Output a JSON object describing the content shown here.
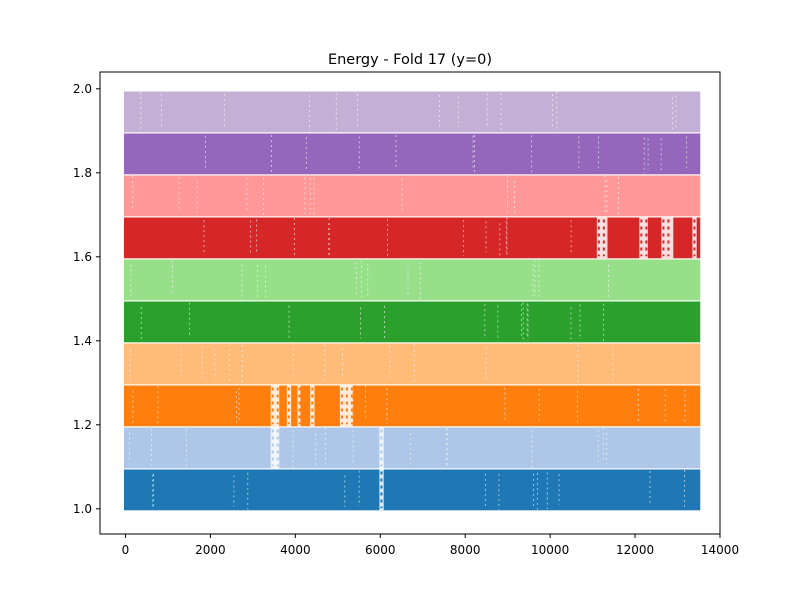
{
  "chart_data": {
    "type": "scatter",
    "title": "Energy - Fold 17 (y=0)",
    "xlabel": "",
    "ylabel": "",
    "xlim": [
      -600,
      14000
    ],
    "ylim": [
      0.94,
      2.04
    ],
    "x_ticks": [
      0,
      2000,
      4000,
      6000,
      8000,
      10000,
      12000,
      14000
    ],
    "y_ticks": [
      1.0,
      1.2,
      1.4,
      1.6,
      1.8,
      2.0
    ],
    "x_tick_labels": [
      "0",
      "2000",
      "4000",
      "6000",
      "8000",
      "10000",
      "12000",
      "14000"
    ],
    "y_tick_labels": [
      "1.0",
      "1.2",
      "1.4",
      "1.6",
      "1.8",
      "2.0"
    ],
    "grid": false,
    "legend": "none",
    "x_range_data": [
      0,
      13500
    ],
    "series": [
      {
        "color": "#1f77b4",
        "y_min": 1.0,
        "y_max": 1.09
      },
      {
        "color": "#aec7e8",
        "y_min": 1.1,
        "y_max": 1.19
      },
      {
        "color": "#ff7f0e",
        "y_min": 1.2,
        "y_max": 1.29
      },
      {
        "color": "#ffbb78",
        "y_min": 1.3,
        "y_max": 1.39
      },
      {
        "color": "#2ca02c",
        "y_min": 1.4,
        "y_max": 1.49
      },
      {
        "color": "#98df8a",
        "y_min": 1.5,
        "y_max": 1.59
      },
      {
        "color": "#d62728",
        "y_min": 1.6,
        "y_max": 1.69
      },
      {
        "color": "#ff9896",
        "y_min": 1.7,
        "y_max": 1.79
      },
      {
        "color": "#9467bd",
        "y_min": 1.8,
        "y_max": 1.89
      },
      {
        "color": "#c5b0d5",
        "y_min": 1.9,
        "y_max": 1.99
      }
    ]
  }
}
